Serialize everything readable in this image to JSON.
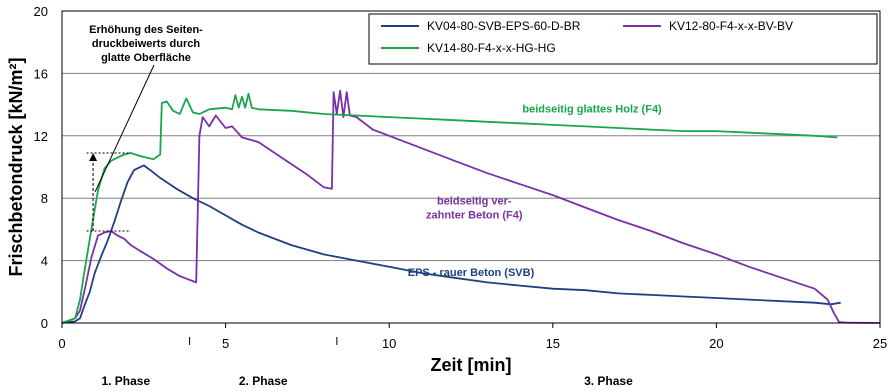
{
  "chart_data": {
    "type": "line",
    "xlabel": "Zeit [min]",
    "ylabel": "Frischbetondruck [kN/m²]",
    "xlim": [
      0,
      25
    ],
    "ylim": [
      0,
      20
    ],
    "x_ticks": [
      0,
      5,
      10,
      15,
      20,
      25
    ],
    "y_ticks": [
      0,
      4,
      8,
      12,
      16,
      20
    ],
    "grid": "horizontal",
    "legend_position": "top-right",
    "phases": [
      {
        "label": "1. Phase",
        "x_from": 0,
        "x_to": 3.9
      },
      {
        "label": "2. Phase",
        "x_from": 3.9,
        "x_to": 8.4
      },
      {
        "label": "3. Phase",
        "x_from": 8.4,
        "x_to": 25
      }
    ],
    "series": [
      {
        "name": "KV04-80-SVB-EPS-60-D-BR",
        "color": "#1f3f7f",
        "x": [
          0,
          0.4,
          0.55,
          0.7,
          0.85,
          1.0,
          1.2,
          1.4,
          1.6,
          1.8,
          2.0,
          2.2,
          2.5,
          2.7,
          3.0,
          3.5,
          4.0,
          4.5,
          5.0,
          5.5,
          6.0,
          7.0,
          8.0,
          9.0,
          10.0,
          11.0,
          12.0,
          13.0,
          14.0,
          15.0,
          16.0,
          17.0,
          18.0,
          19.0,
          20.0,
          21.0,
          22.0,
          23.0,
          23.5,
          23.8
        ],
        "y": [
          0,
          0.1,
          0.3,
          1.2,
          2.0,
          3.2,
          4.3,
          5.3,
          6.5,
          7.8,
          9.0,
          9.8,
          10.1,
          9.8,
          9.3,
          8.6,
          8.0,
          7.5,
          6.9,
          6.3,
          5.8,
          5.0,
          4.4,
          4.0,
          3.6,
          3.2,
          2.9,
          2.6,
          2.4,
          2.2,
          2.1,
          1.9,
          1.8,
          1.7,
          1.6,
          1.5,
          1.4,
          1.3,
          1.2,
          1.3
        ]
      },
      {
        "name": "KV12-80-F4-x-x-BV-BV",
        "color": "#7a30a8",
        "x": [
          0,
          0.4,
          0.55,
          0.7,
          0.9,
          1.1,
          1.3,
          1.5,
          1.7,
          1.9,
          2.1,
          2.4,
          2.8,
          3.2,
          3.6,
          4.1,
          4.2,
          4.3,
          4.5,
          4.7,
          5.0,
          5.2,
          5.5,
          6.0,
          6.5,
          7.0,
          7.5,
          8.0,
          8.25,
          8.3,
          8.4,
          8.5,
          8.6,
          8.7,
          8.8,
          9.0,
          9.5,
          10.0,
          11.0,
          12.0,
          13.0,
          14.0,
          15.0,
          16.0,
          17.0,
          18.0,
          19.0,
          20.0,
          21.0,
          22.0,
          23.0,
          23.4,
          23.6,
          23.75,
          24.0,
          25.0
        ],
        "y": [
          0,
          0.3,
          0.8,
          2.2,
          4.2,
          5.6,
          5.8,
          5.9,
          5.6,
          5.4,
          5.0,
          4.6,
          4.1,
          3.5,
          3.0,
          2.6,
          12.0,
          13.2,
          12.6,
          13.3,
          12.5,
          12.6,
          11.9,
          11.6,
          10.9,
          10.2,
          9.5,
          8.7,
          8.6,
          14.8,
          13.4,
          14.9,
          13.2,
          14.8,
          13.3,
          13.2,
          12.4,
          12.0,
          11.2,
          10.4,
          9.6,
          8.9,
          8.2,
          7.4,
          6.6,
          5.9,
          5.1,
          4.4,
          3.6,
          2.9,
          2.2,
          1.5,
          0.6,
          0.05,
          0.02,
          0
        ]
      },
      {
        "name": "KV14-80-F4-x-x-HG-HG",
        "color": "#1aa64a",
        "x": [
          0,
          0.4,
          0.55,
          0.7,
          0.9,
          1.1,
          1.3,
          1.5,
          1.7,
          1.9,
          2.1,
          2.4,
          2.8,
          3.0,
          3.05,
          3.2,
          3.4,
          3.6,
          3.8,
          4.0,
          4.2,
          4.5,
          5.0,
          5.2,
          5.3,
          5.4,
          5.5,
          5.6,
          5.7,
          5.8,
          6.0,
          7.0,
          8.0,
          9.0,
          10.0,
          11.0,
          12.0,
          13.0,
          14.0,
          15.0,
          16.0,
          17.0,
          18.0,
          19.0,
          20.0,
          21.0,
          22.0,
          23.0,
          23.7
        ],
        "y": [
          0,
          0.3,
          1.5,
          3.5,
          6.0,
          8.5,
          9.9,
          10.4,
          10.6,
          10.8,
          10.9,
          10.7,
          10.5,
          10.8,
          14.1,
          14.2,
          13.6,
          13.4,
          14.4,
          13.5,
          13.4,
          13.7,
          13.8,
          13.7,
          14.6,
          13.8,
          14.5,
          13.8,
          14.7,
          13.8,
          13.7,
          13.6,
          13.4,
          13.3,
          13.2,
          13.1,
          13.0,
          12.9,
          12.8,
          12.7,
          12.6,
          12.5,
          12.4,
          12.3,
          12.3,
          12.2,
          12.1,
          12.0,
          11.9
        ]
      }
    ],
    "annotations": [
      {
        "id": "wood",
        "lines": [
          "beidseitig glattes Holz (F4)"
        ],
        "color": "#1aa64a",
        "x": 16.2,
        "y": 13.5
      },
      {
        "id": "concrete",
        "lines": [
          "beidseitig ver-",
          "zahnter Beton (F4)"
        ],
        "color": "#7a30a8",
        "x": 12.6,
        "y": 7.6
      },
      {
        "id": "eps",
        "lines": [
          "EPS - rauer Beton (SVB)"
        ],
        "color": "#1f3f7f",
        "x": 12.5,
        "y": 3.0
      }
    ],
    "note": {
      "lines": [
        "Erhöhung des Seiten-",
        "druckbeiwerts durch",
        "glatte Oberfläche"
      ],
      "color": "#000000"
    }
  }
}
